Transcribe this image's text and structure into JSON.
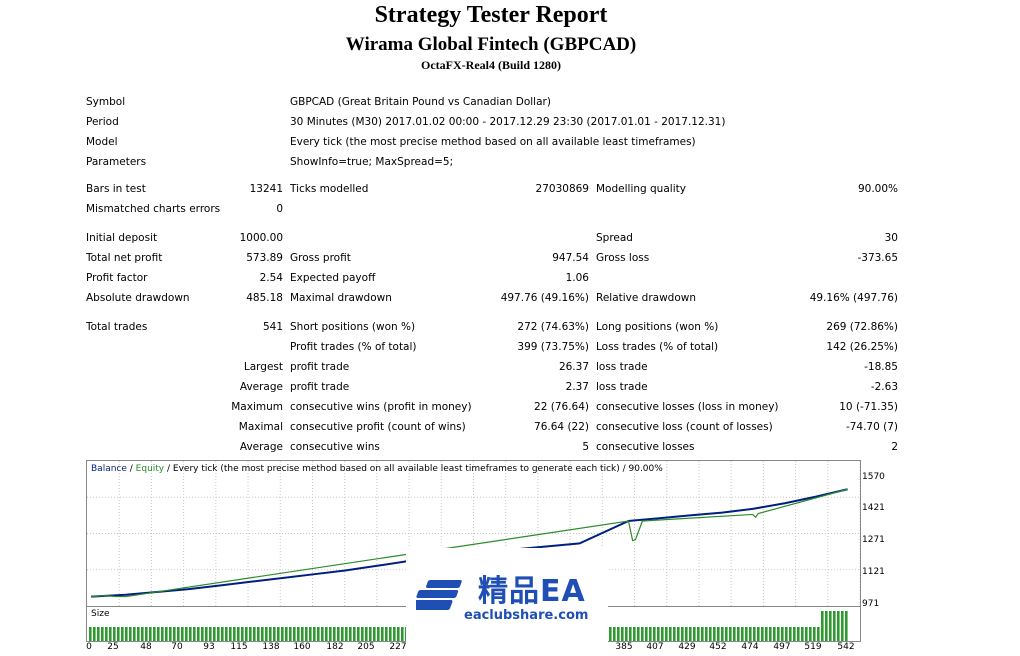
{
  "header": {
    "title": "Strategy Tester Report",
    "subtitle": "Wirama Global Fintech (GBPCAD)",
    "server": "OctaFX-Real4 (Build 1280)"
  },
  "info": {
    "symbol_label": "Symbol",
    "symbol_value": "GBPCAD (Great Britain Pound vs Canadian Dollar)",
    "period_label": "Period",
    "period_value": "30 Minutes (M30) 2017.01.02 00:00 - 2017.12.29 23:30 (2017.01.01 - 2017.12.31)",
    "model_label": "Model",
    "model_value": "Every tick (the most precise method based on all available least timeframes)",
    "params_label": "Parameters",
    "params_value": "ShowInfo=true; MaxSpread=5;"
  },
  "stats": {
    "bars_label": "Bars in test",
    "bars_value": "13241",
    "ticks_label": "Ticks modelled",
    "ticks_value": "27030869",
    "quality_label": "Modelling quality",
    "quality_value": "90.00%",
    "mismatch_label": "Mismatched charts errors",
    "mismatch_value": "0",
    "deposit_label": "Initial deposit",
    "deposit_value": "1000.00",
    "spread_label": "Spread",
    "spread_value": "30",
    "netprofit_label": "Total net profit",
    "netprofit_value": "573.89",
    "grossprofit_label": "Gross profit",
    "grossprofit_value": "947.54",
    "grossloss_label": "Gross loss",
    "grossloss_value": "-373.65",
    "pf_label": "Profit factor",
    "pf_value": "2.54",
    "payoff_label": "Expected payoff",
    "payoff_value": "1.06",
    "absdd_label": "Absolute drawdown",
    "absdd_value": "485.18",
    "maxdd_label": "Maximal drawdown",
    "maxdd_value": "497.76 (49.16%)",
    "reldd_label": "Relative drawdown",
    "reldd_value": "49.16% (497.76)",
    "trades_label": "Total trades",
    "trades_value": "541",
    "short_label": "Short positions (won %)",
    "short_value": "272 (74.63%)",
    "long_label": "Long positions (won %)",
    "long_value": "269 (72.86%)",
    "pt_label": "Profit trades (% of total)",
    "pt_value": "399 (73.75%)",
    "lt_label": "Loss trades (% of total)",
    "lt_value": "142 (26.25%)",
    "largest_label": "Largest",
    "largest_profit_label": "profit trade",
    "largest_profit_value": "26.37",
    "largest_loss_label": "loss trade",
    "largest_loss_value": "-18.85",
    "average_label": "Average",
    "average_profit_label": "profit trade",
    "average_profit_value": "2.37",
    "average_loss_label": "loss trade",
    "average_loss_value": "-2.63",
    "maximum_label": "Maximum",
    "max_wins_label": "consecutive wins (profit in money)",
    "max_wins_value": "22 (76.64)",
    "max_losses_label": "consecutive losses (loss in money)",
    "max_losses_value": "10 (-71.35)",
    "maximal_label": "Maximal",
    "maximal_profit_label": "consecutive profit (count of wins)",
    "maximal_profit_value": "76.64 (22)",
    "maximal_loss_label": "consecutive loss (count of losses)",
    "maximal_loss_value": "-74.70 (7)",
    "average2_label": "Average",
    "avg_wins_label": "consecutive wins",
    "avg_wins_value": "5",
    "avg_losses_label": "consecutive losses",
    "avg_losses_value": "2"
  },
  "chart_data": {
    "type": "line",
    "legend_balance": "Balance",
    "legend_sep": " / ",
    "legend_equity": "Equity",
    "legend_rest": " / Every tick (the most precise method based on all available least timeframes to generate each tick) / 90.00%",
    "size_label": "Size",
    "ylim": [
      971,
      1630
    ],
    "yticks": [
      "1570",
      "1421",
      "1271",
      "1121",
      "971"
    ],
    "xticks": [
      "0",
      "25",
      "48",
      "70",
      "93",
      "115",
      "138",
      "160",
      "182",
      "205",
      "227",
      "385",
      "407",
      "429",
      "452",
      "474",
      "497",
      "519",
      "542"
    ],
    "balance_color": "#001f7f",
    "equity_color": "#2a8a2a",
    "series": [
      {
        "name": "Balance",
        "x": [
          0,
          25,
          48,
          70,
          93,
          115,
          138,
          160,
          182,
          205,
          227,
          250,
          300,
          350,
          385,
          407,
          429,
          452,
          474,
          497,
          519,
          542
        ],
        "y": [
          1000,
          1010,
          1025,
          1040,
          1060,
          1080,
          1100,
          1120,
          1140,
          1165,
          1190,
          1215,
          1250,
          1285,
          1405,
          1420,
          1435,
          1450,
          1470,
          1500,
          1535,
          1575
        ]
      },
      {
        "name": "Equity",
        "x": [
          0,
          10,
          18,
          25,
          385,
          388,
          390,
          395,
          474,
          476,
          478,
          542
        ],
        "y": [
          1000,
          1005,
          1000,
          1000,
          1405,
          1300,
          1305,
          1405,
          1440,
          1425,
          1445,
          1575
        ]
      }
    ]
  },
  "watermark": {
    "text_cn": "精品EA",
    "text_url": "eaclubshare.com"
  }
}
